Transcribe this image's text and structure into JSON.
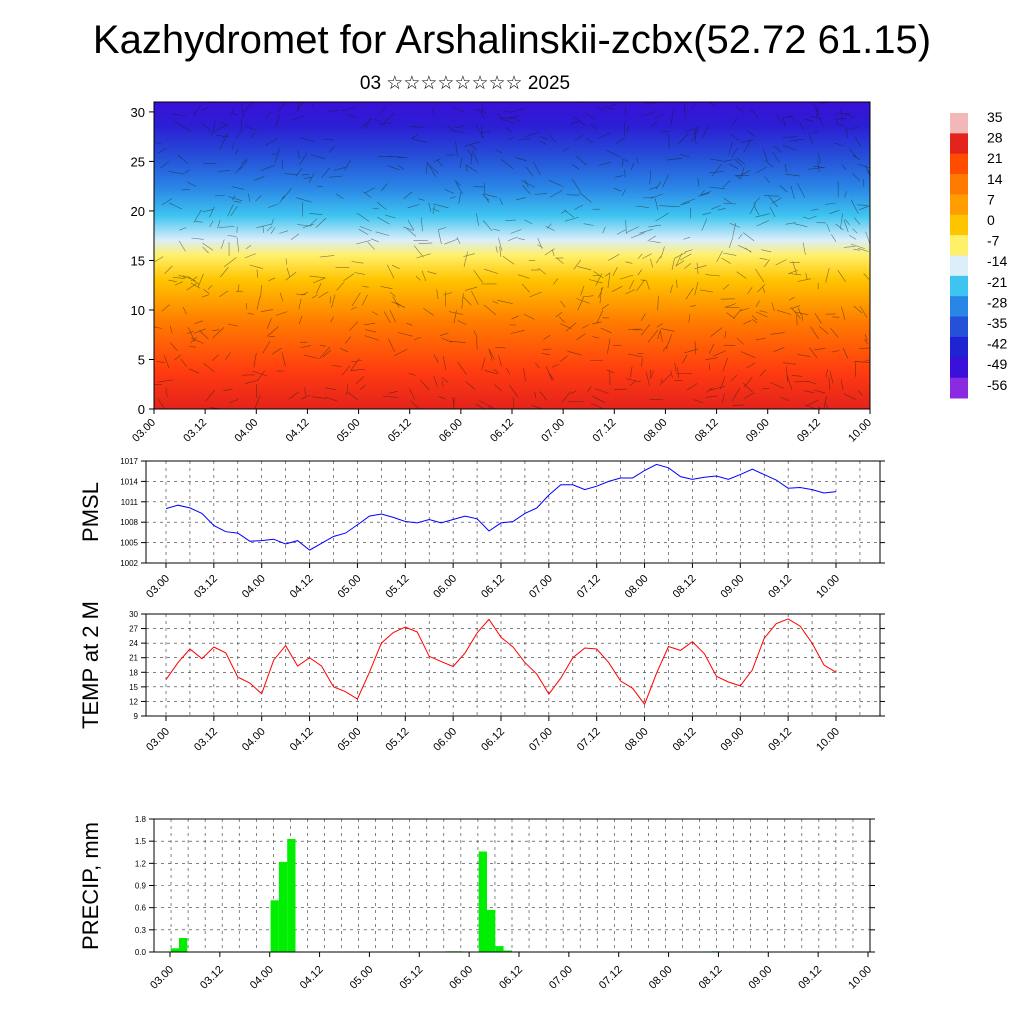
{
  "title": "Kazhydromet for Arshalinskii-zcbx(52.72 61.15)",
  "subtitle": "03 ☆☆☆☆☆☆☆☆ 2025",
  "time_labels": [
    "03.00",
    "03.12",
    "04.00",
    "04.12",
    "05.00",
    "05.12",
    "06.00",
    "06.12",
    "07.00",
    "07.12",
    "08.00",
    "08.12",
    "09.00",
    "09.12",
    "10.00"
  ],
  "chart_data": [
    {
      "type": "heatmap",
      "title": "",
      "ylim": [
        0,
        31
      ],
      "yticks": [
        0,
        5,
        10,
        15,
        20,
        25,
        30
      ],
      "colorbar_labels": [
        "35",
        "28",
        "21",
        "14",
        "7",
        "0",
        "-7",
        "-14",
        "-21",
        "-28",
        "-35",
        "-42",
        "-49",
        "-56"
      ],
      "colorbar_colors": [
        "#f2b8b8",
        "#e4231c",
        "#ff4d00",
        "#ff7a00",
        "#ff9d00",
        "#ffc400",
        "#fff06a",
        "#dbeefa",
        "#3ec4f0",
        "#2a86e6",
        "#2550d8",
        "#1f23d2",
        "#3a10d8",
        "#8a2be2"
      ]
    },
    {
      "type": "line",
      "ylabel": "PMSL",
      "ylim": [
        1002,
        1017
      ],
      "yticks": [
        1002,
        1005,
        1008,
        1011,
        1014,
        1017
      ],
      "color": "#0000ff",
      "values": [
        1010.0,
        1010.5,
        1010.1,
        1009.3,
        1007.5,
        1006.6,
        1006.4,
        1005.2,
        1005.3,
        1005.5,
        1004.8,
        1005.3,
        1003.9,
        1004.9,
        1005.9,
        1006.4,
        1007.6,
        1008.9,
        1009.2,
        1008.7,
        1008.1,
        1007.9,
        1008.4,
        1007.9,
        1008.4,
        1008.9,
        1008.5,
        1006.7,
        1007.9,
        1008.1,
        1009.3,
        1010.1,
        1012.0,
        1013.5,
        1013.5,
        1012.8,
        1013.3,
        1014.0,
        1014.5,
        1014.5,
        1015.6,
        1016.5,
        1016.0,
        1014.7,
        1014.3,
        1014.6,
        1014.8,
        1014.3,
        1015.0,
        1015.8,
        1015.0,
        1014.2,
        1013.0,
        1013.1,
        1012.8,
        1012.3,
        1012.5
      ]
    },
    {
      "type": "line",
      "ylabel": "TEMP at 2 M",
      "ylim": [
        9,
        30
      ],
      "yticks": [
        9,
        12,
        15,
        18,
        21,
        24,
        27,
        30
      ],
      "color": "#ff0000",
      "values": [
        16.5,
        20,
        22.8,
        20.8,
        23.2,
        22,
        17,
        15.8,
        13.6,
        20.5,
        23.5,
        19.3,
        21,
        19.3,
        15,
        14,
        12.5,
        18,
        24,
        26.2,
        27.3,
        26.3,
        21.3,
        20.2,
        19.2,
        22,
        26.1,
        28.9,
        25.2,
        23.2,
        20,
        17.6,
        13.5,
        16.8,
        21,
        23,
        22.8,
        20,
        16.2,
        14.7,
        11.4,
        17.8,
        23.3,
        22.5,
        24.3,
        21.8,
        17.2,
        16,
        15.2,
        18.5,
        25,
        28,
        29,
        27.5,
        24,
        19.5,
        18
      ]
    },
    {
      "type": "bar",
      "ylabel": "PRECIP, mm",
      "ylim": [
        0,
        1.8
      ],
      "yticks": [
        0.0,
        0.3,
        0.6,
        0.9,
        1.2,
        1.5,
        1.8
      ],
      "color": "#00ee00",
      "values": [
        0,
        0,
        0.05,
        0.19,
        0,
        0,
        0,
        0,
        0,
        0,
        0,
        0,
        0,
        0,
        0.7,
        1.22,
        1.53,
        0,
        0,
        0,
        0,
        0,
        0,
        0,
        0,
        0,
        0,
        0,
        0,
        0,
        0,
        0,
        0,
        0,
        0,
        0.01,
        0.01,
        0,
        0,
        1.36,
        0.57,
        0.08,
        0.02,
        0,
        0,
        0,
        0,
        0,
        0,
        0,
        0,
        0,
        0,
        0,
        0,
        0,
        0,
        0,
        0,
        0,
        0,
        0,
        0,
        0,
        0,
        0,
        0,
        0.01,
        0,
        0,
        0,
        0,
        0,
        0,
        0,
        0,
        0,
        0,
        0,
        0,
        0,
        0,
        0,
        0,
        0,
        0
      ]
    }
  ]
}
